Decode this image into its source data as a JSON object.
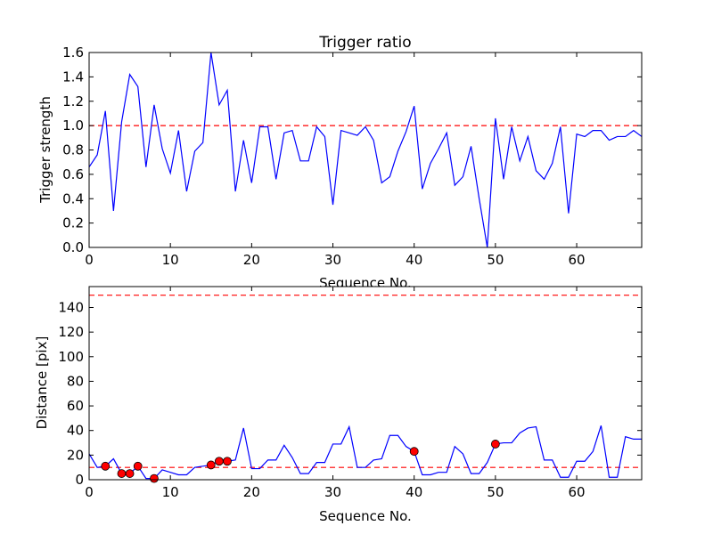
{
  "chart_data": [
    {
      "type": "line",
      "title": "Trigger ratio",
      "xlabel": "Sequence No.",
      "ylabel": "Trigger strength",
      "xlim": [
        0,
        68
      ],
      "ylim": [
        0,
        1.6
      ],
      "xticks": [
        0,
        10,
        20,
        30,
        40,
        50,
        60
      ],
      "yticks": [
        0.0,
        0.2,
        0.4,
        0.6,
        0.8,
        1.0,
        1.2,
        1.4,
        1.6
      ],
      "ytick_labels": [
        "0.0",
        "0.2",
        "0.4",
        "0.6",
        "0.8",
        "1.0",
        "1.2",
        "1.4",
        "1.6"
      ],
      "threshold": 1.0,
      "line_color": "#0000ff",
      "threshold_color": "#ff0000",
      "x": [
        0,
        1,
        2,
        3,
        4,
        5,
        6,
        7,
        8,
        9,
        10,
        11,
        12,
        13,
        14,
        15,
        16,
        17,
        18,
        19,
        20,
        21,
        22,
        23,
        24,
        25,
        26,
        27,
        28,
        29,
        30,
        31,
        32,
        33,
        34,
        35,
        36,
        37,
        38,
        39,
        40,
        41,
        42,
        43,
        44,
        45,
        46,
        47,
        48,
        49,
        50,
        51,
        52,
        53,
        54,
        55,
        56,
        57,
        58,
        59,
        60,
        61,
        62,
        63,
        64,
        65,
        66,
        67,
        68
      ],
      "y": [
        0.66,
        0.76,
        1.12,
        0.3,
        1.03,
        1.42,
        1.32,
        0.66,
        1.17,
        0.81,
        0.61,
        0.96,
        0.46,
        0.79,
        0.86,
        1.6,
        1.17,
        1.29,
        0.46,
        0.88,
        0.53,
        0.99,
        0.99,
        0.56,
        0.94,
        0.96,
        0.71,
        0.71,
        0.99,
        0.91,
        0.35,
        0.96,
        0.94,
        0.92,
        0.99,
        0.88,
        0.53,
        0.58,
        0.79,
        0.95,
        1.16,
        0.48,
        0.69,
        0.81,
        0.94,
        0.51,
        0.58,
        0.83,
        0.4,
        0.0,
        1.06,
        0.56,
        0.99,
        0.71,
        0.91,
        0.63,
        0.56,
        0.69,
        0.99,
        0.28,
        0.93,
        0.91,
        0.96,
        0.96,
        0.88,
        0.91,
        0.91,
        0.96,
        0.91
      ]
    },
    {
      "type": "line",
      "title": "",
      "xlabel": "Sequence No.",
      "ylabel": "Distance [pix]",
      "xlim": [
        0,
        68
      ],
      "ylim": [
        0,
        157
      ],
      "xticks": [
        0,
        10,
        20,
        30,
        40,
        50,
        60
      ],
      "yticks": [
        0,
        20,
        40,
        60,
        80,
        100,
        120,
        140
      ],
      "thresholds": [
        10,
        150
      ],
      "line_color": "#0000ff",
      "threshold_color": "#ff0000",
      "marker_color": "#ff0000",
      "x": [
        0,
        1,
        2,
        3,
        4,
        5,
        6,
        7,
        8,
        9,
        10,
        11,
        12,
        13,
        14,
        15,
        16,
        17,
        18,
        19,
        20,
        21,
        22,
        23,
        24,
        25,
        26,
        27,
        28,
        29,
        30,
        31,
        32,
        33,
        34,
        35,
        36,
        37,
        38,
        39,
        40,
        41,
        42,
        43,
        44,
        45,
        46,
        47,
        48,
        49,
        50,
        51,
        52,
        53,
        54,
        55,
        56,
        57,
        58,
        59,
        60,
        61,
        62,
        63,
        64,
        65,
        66,
        67,
        68
      ],
      "y": [
        21,
        10,
        11,
        17,
        5,
        5,
        11,
        1,
        1,
        8,
        6,
        4,
        4,
        10,
        11,
        12,
        15,
        15,
        16,
        42,
        9,
        9,
        16,
        16,
        28,
        18,
        5,
        5,
        14,
        14,
        29,
        29,
        43,
        10,
        10,
        16,
        17,
        36,
        36,
        27,
        23,
        4,
        4,
        6,
        6,
        27,
        21,
        5,
        5,
        14,
        29,
        30,
        30,
        38,
        42,
        43,
        16,
        16,
        2,
        2,
        15,
        15,
        23,
        44,
        2,
        2,
        35,
        33,
        33
      ],
      "markers": {
        "x": [
          2,
          4,
          5,
          6,
          8,
          15,
          16,
          17,
          40,
          50
        ],
        "y": [
          11,
          5,
          5,
          11,
          1,
          12,
          15,
          15,
          23,
          29
        ]
      }
    }
  ]
}
